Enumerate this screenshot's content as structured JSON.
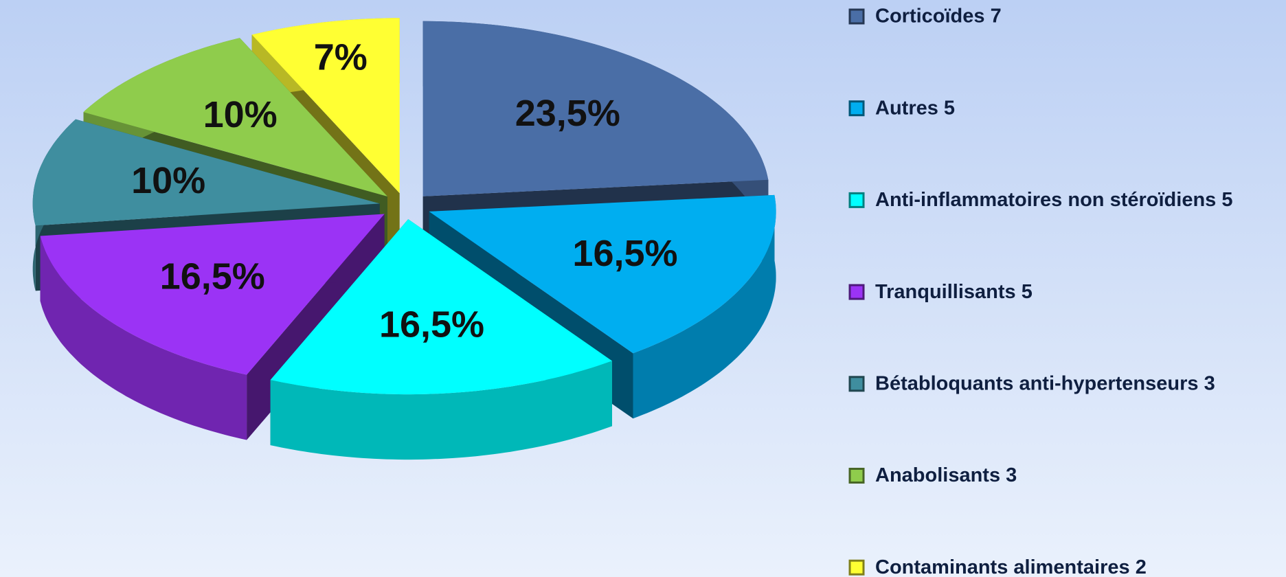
{
  "chart_data": {
    "type": "pie3d",
    "categories": [
      "Corticoïdes 7",
      "Autres 5",
      "Anti-inflammatoires non stéroïdiens 5",
      "Tranquillisants 5",
      "Bétabloquants anti-hypertenseurs 3",
      "Anabolisants 3",
      "Contaminants alimentaires 2"
    ],
    "values": [
      23.5,
      16.5,
      16.5,
      16.5,
      10,
      10,
      7
    ],
    "value_labels": [
      "23,5%",
      "16,5%",
      "16,5%",
      "16,5%",
      "10%",
      "10%",
      "7%"
    ],
    "colors": [
      "#4a6ea6",
      "#00aef0",
      "#00ffff",
      "#9b33f5",
      "#3f8e9f",
      "#8fcc4c",
      "#ffff33"
    ],
    "legend": "right"
  }
}
